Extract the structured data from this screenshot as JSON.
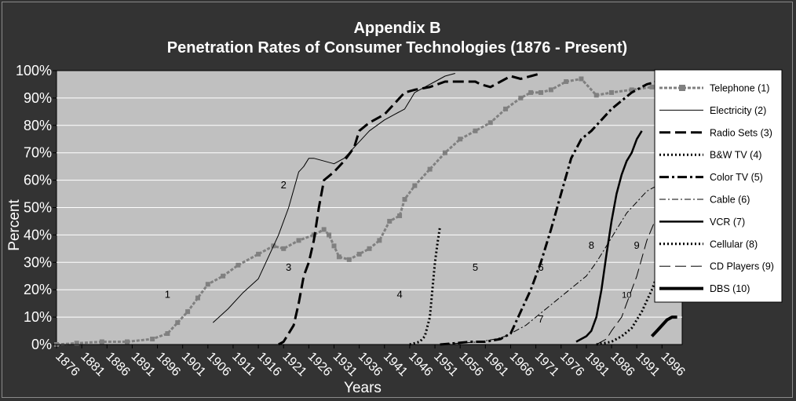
{
  "chart_data": {
    "type": "line",
    "title": "Appendix B",
    "subtitle": "Penetration Rates of Consumer Technologies (1876 - Present)",
    "xlabel": "Years",
    "ylabel": "Percent",
    "xlim": [
      1876,
      2000
    ],
    "ylim": [
      0,
      100
    ],
    "x_ticks": [
      "1876",
      "1881",
      "1886",
      "1891",
      "1896",
      "1901",
      "1906",
      "1911",
      "1916",
      "1921",
      "1926",
      "1931",
      "1936",
      "1941",
      "1946",
      "1951",
      "1956",
      "1961",
      "1966",
      "1971",
      "1976",
      "1981",
      "1986",
      "1991",
      "1996"
    ],
    "y_ticks": [
      "0%",
      "10%",
      "20%",
      "30%",
      "40%",
      "50%",
      "60%",
      "70%",
      "80%",
      "90%",
      "100%"
    ],
    "grid": true,
    "legend_position": "right",
    "colors": {
      "background": "#333333",
      "plot_area": "#c0c0c0",
      "gridline": "#ffffff",
      "telephone": "#808080",
      "lines": "#000000"
    },
    "series": [
      {
        "name": "Telephone (1)",
        "style": "square-markers",
        "points": [
          [
            1876,
            0
          ],
          [
            1880,
            0.5
          ],
          [
            1885,
            1
          ],
          [
            1890,
            1
          ],
          [
            1895,
            2
          ],
          [
            1898,
            4
          ],
          [
            1900,
            8
          ],
          [
            1902,
            12
          ],
          [
            1904,
            17
          ],
          [
            1906,
            22
          ],
          [
            1909,
            25
          ],
          [
            1912,
            29
          ],
          [
            1916,
            33
          ],
          [
            1919,
            36
          ],
          [
            1921,
            35
          ],
          [
            1924,
            38
          ],
          [
            1927,
            40
          ],
          [
            1929,
            42
          ],
          [
            1930,
            40
          ],
          [
            1931,
            36
          ],
          [
            1932,
            32
          ],
          [
            1934,
            31
          ],
          [
            1936,
            33
          ],
          [
            1938,
            35
          ],
          [
            1940,
            38
          ],
          [
            1942,
            45
          ],
          [
            1944,
            47
          ],
          [
            1945,
            53
          ],
          [
            1947,
            58
          ],
          [
            1950,
            64
          ],
          [
            1953,
            70
          ],
          [
            1956,
            75
          ],
          [
            1959,
            78
          ],
          [
            1962,
            81
          ],
          [
            1965,
            86
          ],
          [
            1968,
            90
          ],
          [
            1970,
            92
          ],
          [
            1972,
            92
          ],
          [
            1974,
            93
          ],
          [
            1977,
            96
          ],
          [
            1980,
            97
          ],
          [
            1983,
            91
          ],
          [
            1986,
            92
          ],
          [
            1990,
            93
          ],
          [
            1994,
            94
          ],
          [
            1997,
            94
          ]
        ]
      },
      {
        "name": "Electricity (2)",
        "style": "thin-solid",
        "points": [
          [
            1907,
            8
          ],
          [
            1910,
            13
          ],
          [
            1913,
            19
          ],
          [
            1916,
            24
          ],
          [
            1918,
            32
          ],
          [
            1920,
            40
          ],
          [
            1922,
            50
          ],
          [
            1924,
            63
          ],
          [
            1925,
            65
          ],
          [
            1926,
            68
          ],
          [
            1927,
            68
          ],
          [
            1929,
            67
          ],
          [
            1931,
            66
          ],
          [
            1933,
            68
          ],
          [
            1935,
            72
          ],
          [
            1938,
            78
          ],
          [
            1941,
            82
          ],
          [
            1943,
            84
          ],
          [
            1945,
            86
          ],
          [
            1947,
            92
          ],
          [
            1949,
            94
          ],
          [
            1951,
            96
          ],
          [
            1953,
            98
          ],
          [
            1955,
            99
          ]
        ]
      },
      {
        "name": "Radio Sets (3)",
        "style": "long-dash",
        "points": [
          [
            1920,
            0
          ],
          [
            1921,
            1
          ],
          [
            1923,
            7
          ],
          [
            1924,
            15
          ],
          [
            1925,
            25
          ],
          [
            1926,
            30
          ],
          [
            1927,
            38
          ],
          [
            1928,
            50
          ],
          [
            1929,
            60
          ],
          [
            1931,
            63
          ],
          [
            1933,
            67
          ],
          [
            1935,
            72
          ],
          [
            1936,
            78
          ],
          [
            1938,
            81
          ],
          [
            1941,
            84
          ],
          [
            1943,
            88
          ],
          [
            1945,
            92
          ],
          [
            1947,
            93
          ],
          [
            1950,
            94
          ],
          [
            1953,
            96
          ],
          [
            1956,
            96
          ],
          [
            1959,
            96
          ],
          [
            1960,
            95
          ],
          [
            1962,
            94
          ],
          [
            1964,
            96
          ],
          [
            1966,
            98
          ],
          [
            1968,
            97
          ],
          [
            1970,
            98
          ],
          [
            1972,
            99
          ]
        ]
      },
      {
        "name": "B&W TV (4)",
        "style": "dotted",
        "points": [
          [
            1946,
            0
          ],
          [
            1948,
            1
          ],
          [
            1949,
            3
          ],
          [
            1950,
            10
          ],
          [
            1950.5,
            20
          ],
          [
            1951,
            30
          ],
          [
            1951.5,
            37
          ],
          [
            1952,
            43
          ]
        ]
      },
      {
        "name": "Color TV (5)",
        "style": "dash-dot",
        "points": [
          [
            1952,
            0
          ],
          [
            1955,
            0.5
          ],
          [
            1958,
            1
          ],
          [
            1961,
            1
          ],
          [
            1964,
            2
          ],
          [
            1966,
            4
          ],
          [
            1968,
            12
          ],
          [
            1970,
            20
          ],
          [
            1972,
            30
          ],
          [
            1974,
            42
          ],
          [
            1976,
            55
          ],
          [
            1978,
            68
          ],
          [
            1980,
            75
          ],
          [
            1982,
            78
          ],
          [
            1984,
            82
          ],
          [
            1986,
            86
          ],
          [
            1988,
            89
          ],
          [
            1990,
            92
          ],
          [
            1993,
            95
          ],
          [
            1995,
            96
          ],
          [
            1998,
            98
          ]
        ]
      },
      {
        "name": "Cable (6)",
        "style": "thin-dash-dot",
        "points": [
          [
            1952,
            0
          ],
          [
            1956,
            0.5
          ],
          [
            1960,
            1
          ],
          [
            1963,
            2
          ],
          [
            1965,
            3
          ],
          [
            1967,
            5
          ],
          [
            1969,
            7
          ],
          [
            1971,
            10
          ],
          [
            1973,
            13
          ],
          [
            1975,
            16
          ],
          [
            1977,
            19
          ],
          [
            1979,
            22
          ],
          [
            1981,
            25
          ],
          [
            1983,
            30
          ],
          [
            1985,
            36
          ],
          [
            1987,
            42
          ],
          [
            1989,
            48
          ],
          [
            1991,
            52
          ],
          [
            1993,
            56
          ],
          [
            1995,
            58
          ]
        ]
      },
      {
        "name": "VCR (7)",
        "style": "solid",
        "points": [
          [
            1979,
            1
          ],
          [
            1981,
            3
          ],
          [
            1982,
            5
          ],
          [
            1983,
            10
          ],
          [
            1984,
            20
          ],
          [
            1985,
            33
          ],
          [
            1986,
            45
          ],
          [
            1987,
            55
          ],
          [
            1988,
            62
          ],
          [
            1989,
            67
          ],
          [
            1990,
            70
          ],
          [
            1991,
            75
          ],
          [
            1992,
            78
          ]
        ]
      },
      {
        "name": "Cellular (8)",
        "style": "dotted",
        "points": [
          [
            1983,
            0
          ],
          [
            1986,
            1
          ],
          [
            1988,
            3
          ],
          [
            1990,
            6
          ],
          [
            1992,
            12
          ],
          [
            1994,
            20
          ],
          [
            1996,
            30
          ]
        ]
      },
      {
        "name": "CD Players (9)",
        "style": "long-dash-thin",
        "points": [
          [
            1983,
            0
          ],
          [
            1985,
            2
          ],
          [
            1986,
            5
          ],
          [
            1988,
            10
          ],
          [
            1989,
            15
          ],
          [
            1991,
            25
          ],
          [
            1993,
            38
          ],
          [
            1995,
            47
          ],
          [
            1996,
            50
          ]
        ]
      },
      {
        "name": "DBS (10)",
        "style": "thick-solid",
        "points": [
          [
            1994,
            3
          ],
          [
            1995,
            5
          ],
          [
            1996,
            7
          ],
          [
            1997,
            9
          ],
          [
            1998,
            10
          ],
          [
            1999,
            10
          ]
        ]
      }
    ],
    "annotations": [
      {
        "text": "1",
        "x": 1898,
        "y": 17
      },
      {
        "text": "2",
        "x": 1921,
        "y": 57
      },
      {
        "text": "3",
        "x": 1922,
        "y": 27
      },
      {
        "text": "4",
        "x": 1944,
        "y": 17
      },
      {
        "text": "5",
        "x": 1959,
        "y": 27
      },
      {
        "text": "6",
        "x": 1972,
        "y": 27
      },
      {
        "text": "7",
        "x": 1972,
        "y": 8
      },
      {
        "text": "8",
        "x": 1982,
        "y": 35
      },
      {
        "text": "9",
        "x": 1991,
        "y": 35
      },
      {
        "text": "10",
        "x": 1989,
        "y": 17
      }
    ]
  }
}
